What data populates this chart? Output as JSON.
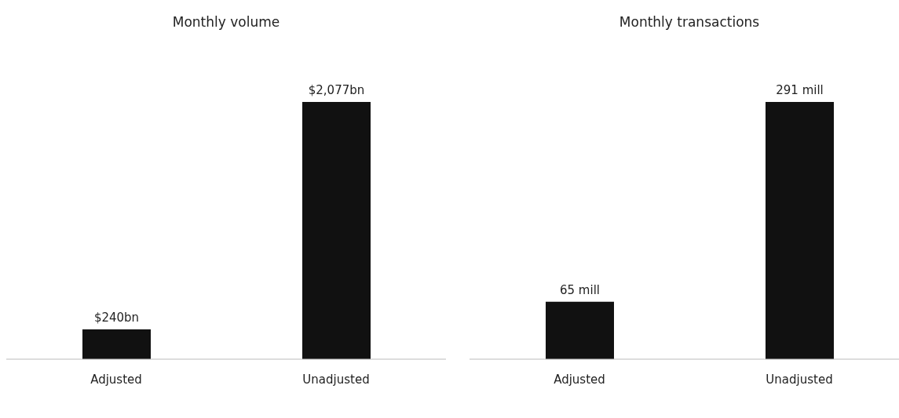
{
  "chart_data": [
    {
      "type": "bar",
      "title": "Monthly volume",
      "categories": [
        "Adjusted",
        "Unadjusted"
      ],
      "values": [
        240,
        2077
      ],
      "value_labels": [
        "$240bn",
        "$2,077bn"
      ],
      "color": "#111111",
      "grid": false,
      "legend": false
    },
    {
      "type": "bar",
      "title": "Monthly transactions",
      "categories": [
        "Adjusted",
        "Unadjusted"
      ],
      "values": [
        65,
        291
      ],
      "value_labels": [
        "65 mill",
        "291 mill"
      ],
      "color": "#111111",
      "grid": false,
      "legend": false
    }
  ]
}
